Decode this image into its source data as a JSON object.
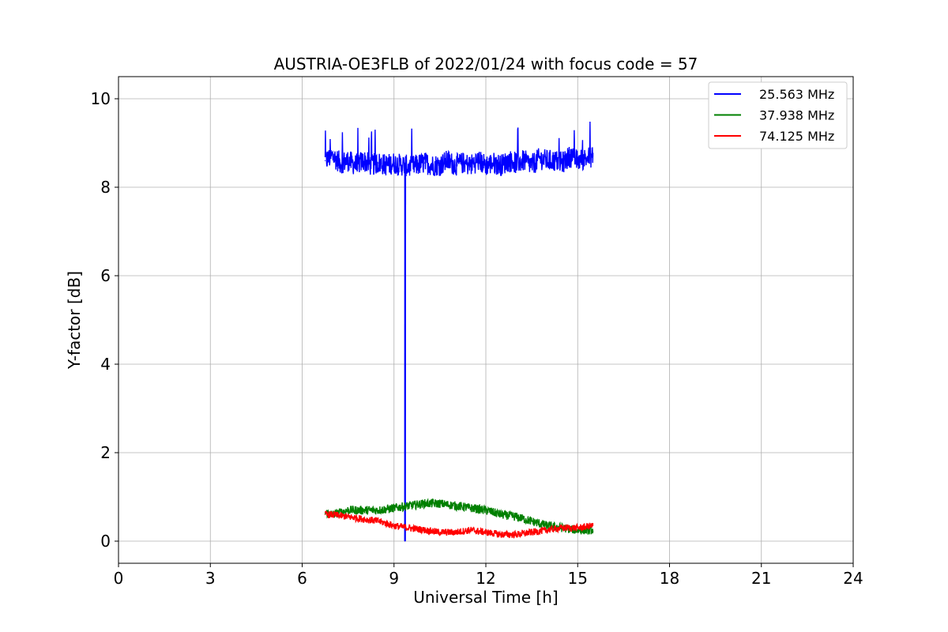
{
  "chart_data": {
    "type": "line",
    "title": "AUSTRIA-OE3FLB of 2022/01/24 with focus code = 57",
    "xlabel": "Universal Time [h]",
    "ylabel": "Y-factor [dB]",
    "xlim": [
      0,
      24
    ],
    "ylim": [
      -0.5,
      10.5
    ],
    "xticks": [
      0,
      3,
      6,
      9,
      12,
      15,
      18,
      21,
      24
    ],
    "yticks": [
      0,
      2,
      4,
      6,
      8,
      10
    ],
    "grid": true,
    "legend_position": "top-right",
    "series": [
      {
        "name": "25.563 MHz",
        "color": "#0000ff",
        "x": [
          6.75,
          7.0,
          7.25,
          7.5,
          7.75,
          8.0,
          8.25,
          8.5,
          8.75,
          9.0,
          9.25,
          9.36,
          9.36,
          9.37,
          9.5,
          9.75,
          10.0,
          10.25,
          10.5,
          10.75,
          11.0,
          11.25,
          11.5,
          11.75,
          12.0,
          12.25,
          12.5,
          12.75,
          13.0,
          13.25,
          13.5,
          13.75,
          14.0,
          14.25,
          14.5,
          14.75,
          15.0,
          15.25,
          15.5
        ],
        "y": [
          8.6,
          8.7,
          8.55,
          8.6,
          8.5,
          8.6,
          8.5,
          8.55,
          8.5,
          8.55,
          8.5,
          8.5,
          0.0,
          8.5,
          8.45,
          8.5,
          8.55,
          8.5,
          8.5,
          8.6,
          8.5,
          8.55,
          8.5,
          8.6,
          8.5,
          8.55,
          8.5,
          8.6,
          8.55,
          8.6,
          8.5,
          8.65,
          8.6,
          8.6,
          8.55,
          8.7,
          8.6,
          8.65,
          8.7
        ],
        "spread": 0.25
      },
      {
        "name": "37.938 MHz",
        "color": "#008000",
        "x": [
          6.75,
          7.0,
          7.5,
          8.0,
          8.5,
          9.0,
          9.5,
          10.0,
          10.5,
          11.0,
          11.5,
          12.0,
          12.5,
          13.0,
          13.5,
          14.0,
          14.5,
          15.0,
          15.5
        ],
        "y": [
          0.65,
          0.6,
          0.7,
          0.7,
          0.7,
          0.75,
          0.8,
          0.85,
          0.85,
          0.8,
          0.75,
          0.7,
          0.6,
          0.55,
          0.45,
          0.35,
          0.3,
          0.25,
          0.25
        ],
        "spread": 0.1
      },
      {
        "name": "74.125 MHz",
        "color": "#ff0000",
        "x": [
          6.75,
          7.0,
          7.5,
          8.0,
          8.5,
          9.0,
          9.5,
          10.0,
          10.5,
          11.0,
          11.5,
          12.0,
          12.5,
          13.0,
          13.5,
          14.0,
          14.5,
          15.0,
          15.5
        ],
        "y": [
          0.6,
          0.6,
          0.55,
          0.5,
          0.45,
          0.35,
          0.3,
          0.25,
          0.2,
          0.2,
          0.25,
          0.2,
          0.15,
          0.15,
          0.2,
          0.25,
          0.3,
          0.3,
          0.35
        ],
        "spread": 0.08
      }
    ]
  }
}
